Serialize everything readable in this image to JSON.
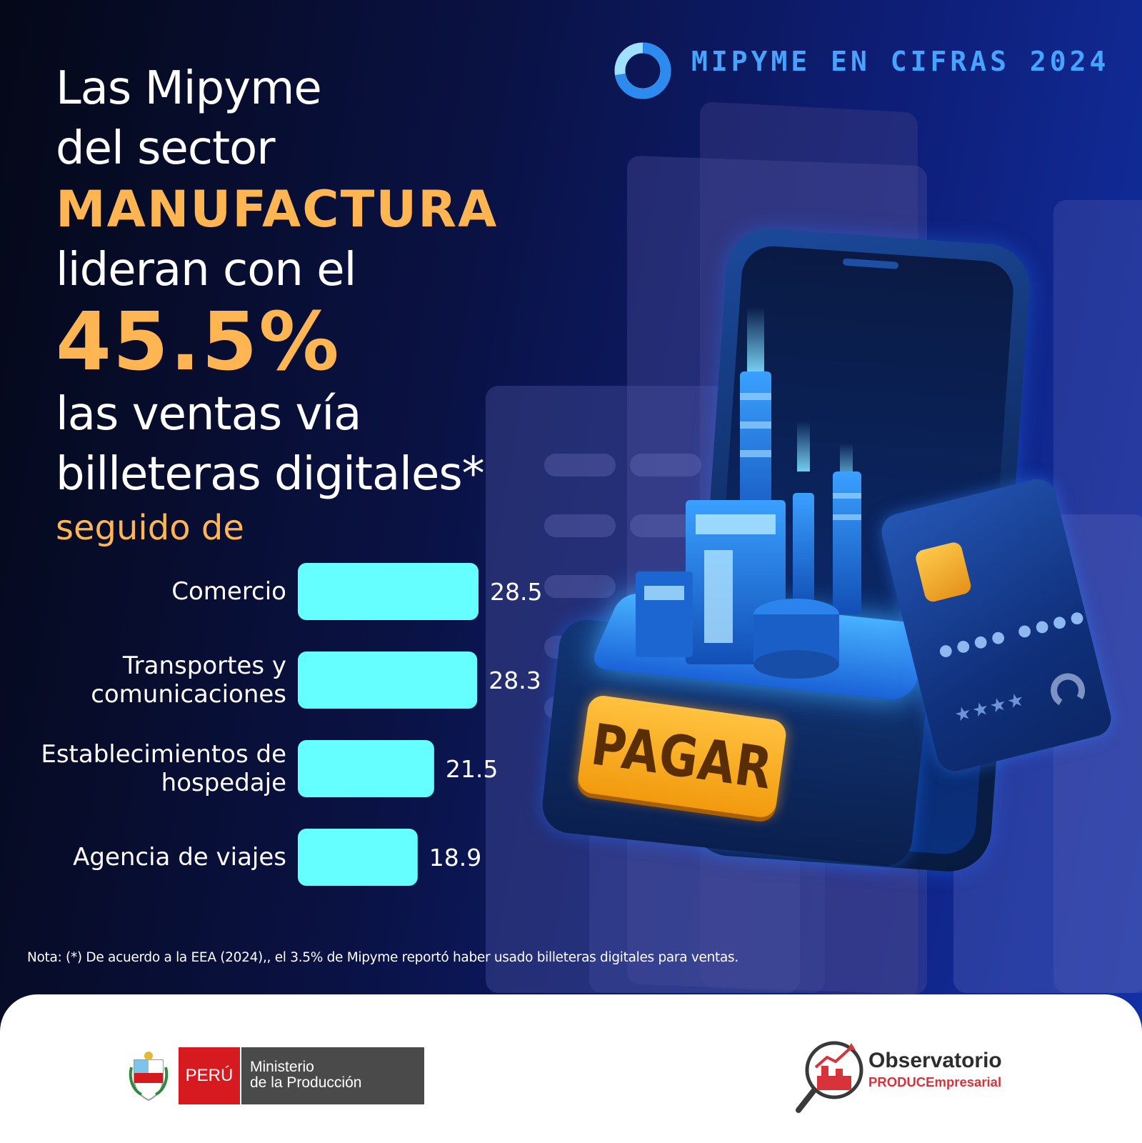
{
  "header": {
    "brand_title": "MIPYME EN CIFRAS 2024",
    "ring_icon": "ring-logo-icon"
  },
  "headline": {
    "line1": "Las Mipyme",
    "line2": "del sector",
    "line3": "MANUFACTURA",
    "line4": "lideran con el",
    "line5": "45.5%",
    "line6": "las ventas vía",
    "line7": "billeteras digitales*",
    "line8": "seguido de"
  },
  "colors": {
    "accent": "#ffb552",
    "bar": "#66ffff",
    "brand_blue": "#46a4ff"
  },
  "chart_data": {
    "type": "bar",
    "orientation": "horizontal",
    "categories": [
      "Comercio",
      "Transportes y comunicaciones",
      "Establecimientos de hospedaje",
      "Agencia de viajes"
    ],
    "category_lines": [
      [
        "Comercio"
      ],
      [
        "Transportes y",
        "comunicaciones"
      ],
      [
        "Establecimientos de",
        "hospedaje"
      ],
      [
        "Agencia de viajes"
      ]
    ],
    "values": [
      28.5,
      28.3,
      21.5,
      18.9
    ],
    "value_labels": [
      "28.5",
      "28.3",
      "21.5",
      "18.9"
    ],
    "xlim": [
      0,
      28.5
    ],
    "grid": false,
    "legend": "none"
  },
  "illustration": {
    "pay_button": "PAGAR",
    "card_stars": "★★★★"
  },
  "note": "Nota: (*) De acuerdo a la EEA (2024),, el 3.5% de Mipyme reportó haber usado billeteras digitales para ventas.",
  "footer": {
    "gov_country": "PERÚ",
    "gov_ministry_line1": "Ministerio",
    "gov_ministry_line2": "de la Producción",
    "obs_title": "Observatorio",
    "obs_subtitle": "PRODUCEmpresarial"
  }
}
